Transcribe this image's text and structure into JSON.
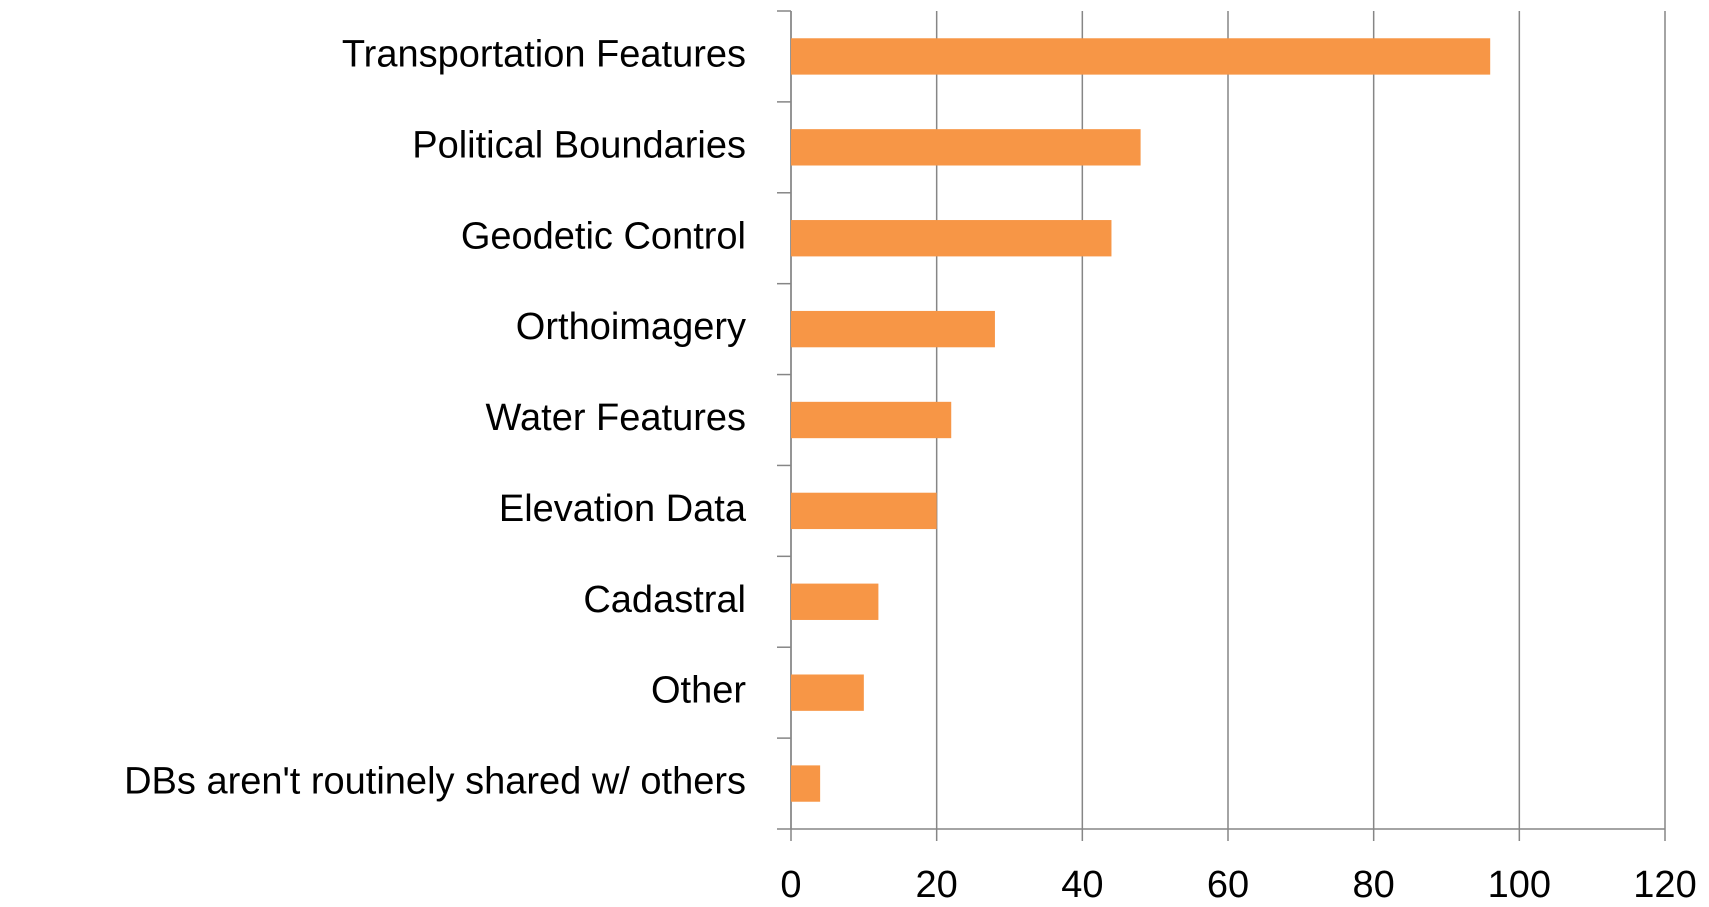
{
  "chart_data": {
    "type": "hbar",
    "categories": [
      "Transportation Features",
      "Political Boundaries",
      "Geodetic Control",
      "Orthoimagery",
      "Water Features",
      "Elevation Data",
      "Cadastral",
      "Other",
      "DBs aren't routinely shared w/ others"
    ],
    "values": [
      96,
      48,
      44,
      28,
      22,
      20,
      12,
      10,
      4
    ],
    "color": "#f79646",
    "xlim": [
      0,
      120
    ],
    "xticks": [
      0,
      20,
      40,
      60,
      80,
      100,
      120
    ],
    "grid": true
  }
}
